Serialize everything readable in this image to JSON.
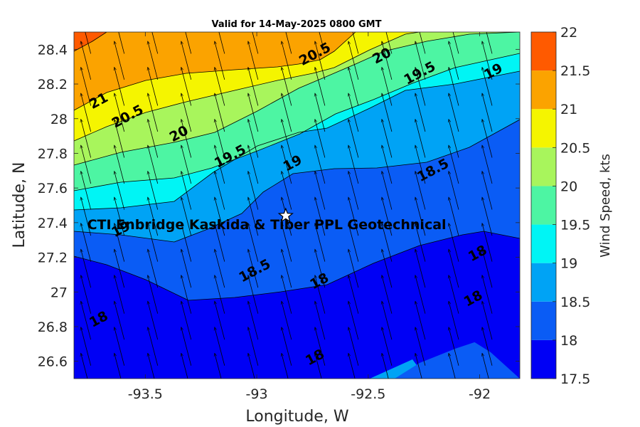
{
  "chart_data": {
    "type": "contour",
    "title": "Valid for 14-May-2025 0800 GMT",
    "xlabel": "Longitude, W",
    "ylabel": "Latitude, N",
    "xlim": [
      -93.82,
      -91.82
    ],
    "ylim": [
      26.5,
      28.5
    ],
    "xticks": [
      -93.5,
      -93,
      -92.5,
      -92
    ],
    "xtick_labels": [
      "-93.5",
      "-93",
      "-92.5",
      "-92"
    ],
    "yticks": [
      26.6,
      26.8,
      27,
      27.2,
      27.4,
      27.6,
      27.8,
      28,
      28.2,
      28.4
    ],
    "ytick_labels": [
      "26.6",
      "26.8",
      "27",
      "27.2",
      "27.4",
      "27.6",
      "27.8",
      "28",
      "28.2",
      "28.4"
    ],
    "colorbar": {
      "label": "Wind Speed, kts",
      "levels": [
        17.5,
        18,
        18.5,
        19,
        19.5,
        20,
        20.5,
        21,
        21.5,
        22
      ],
      "tick_labels": [
        "17.5",
        "18",
        "18.5",
        "19",
        "19.5",
        "20",
        "20.5",
        "21",
        "21.5",
        "22"
      ],
      "colors": [
        "#0000f5",
        "#0a5cf5",
        "#00a3f5",
        "#00f5f5",
        "#4df5a3",
        "#a8f55c",
        "#f5f500",
        "#fba300",
        "#ff5a00"
      ]
    },
    "contour_labels": [
      {
        "text": "21",
        "lon": -93.7,
        "lat": 28.08
      },
      {
        "text": "20.5",
        "lon": -93.57,
        "lat": 27.99
      },
      {
        "text": "20",
        "lon": -93.34,
        "lat": 27.89
      },
      {
        "text": "19.5",
        "lon": -93.11,
        "lat": 27.76
      },
      {
        "text": "19",
        "lon": -92.83,
        "lat": 27.72
      },
      {
        "text": "20.5",
        "lon": -92.73,
        "lat": 28.35
      },
      {
        "text": "20",
        "lon": -92.43,
        "lat": 28.34
      },
      {
        "text": "19.5",
        "lon": -92.26,
        "lat": 28.24
      },
      {
        "text": "19",
        "lon": -91.93,
        "lat": 28.25
      },
      {
        "text": "18.5",
        "lon": -92.2,
        "lat": 27.68
      },
      {
        "text": "19",
        "lon": -93.6,
        "lat": 27.34
      },
      {
        "text": "18.5",
        "lon": -93.0,
        "lat": 27.1
      },
      {
        "text": "18",
        "lon": -92.71,
        "lat": 27.04
      },
      {
        "text": "18",
        "lon": -92.0,
        "lat": 27.2
      },
      {
        "text": "18",
        "lon": -92.02,
        "lat": 26.94
      },
      {
        "text": "18",
        "lon": -93.7,
        "lat": 26.82
      },
      {
        "text": "18",
        "lon": -92.73,
        "lat": 26.6
      }
    ],
    "annotation": {
      "text": "CTI Enbridge  Kaskida & Tiber PPL Geotechnical",
      "lon": -93.85,
      "lat": 27.37
    },
    "marker": {
      "symbol": "star",
      "lon": -92.87,
      "lat": 27.44
    },
    "wind_vectors": {
      "direction": "toward north-northwest (southeasterly wind)",
      "grid_spacing_deg": 0.15
    }
  }
}
